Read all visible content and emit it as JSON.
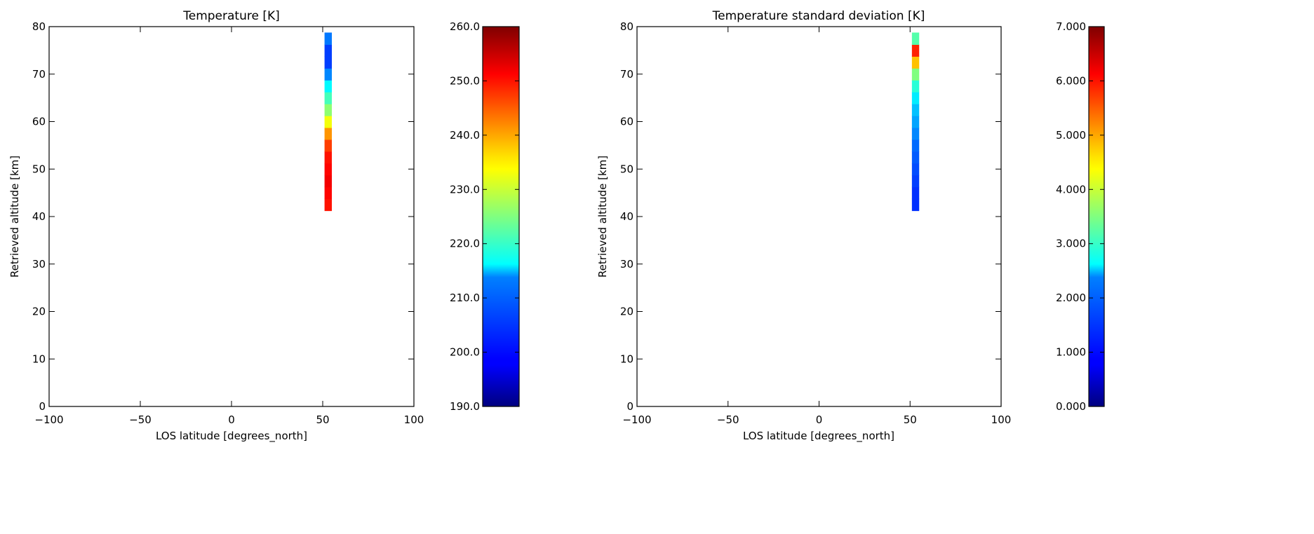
{
  "chart_data": [
    {
      "type": "heatmap",
      "title": "Temperature [K]",
      "xlabel": "LOS latitude [degrees_north]",
      "ylabel": "Retrieved altitude [km]",
      "xlim": [
        -100,
        100
      ],
      "ylim": [
        0,
        80
      ],
      "xticks": [
        -100,
        -50,
        0,
        50,
        100
      ],
      "xtick_labels": [
        "−100",
        "−50",
        "0",
        "50",
        "100"
      ],
      "yticks": [
        0,
        10,
        20,
        30,
        40,
        50,
        60,
        70,
        80
      ],
      "ytick_labels": [
        "0",
        "10",
        "20",
        "30",
        "40",
        "50",
        "60",
        "70",
        "80"
      ],
      "colorbar": {
        "min": 190.0,
        "max": 260.0,
        "tick_values": [
          190,
          200,
          210,
          220,
          230,
          240,
          250,
          260
        ],
        "tick_labels": [
          "190.0",
          "200.0",
          "210.0",
          "220.0",
          "230.0",
          "240.0",
          "250.0",
          "260.0"
        ],
        "colormap": "jet"
      },
      "column": {
        "lat_min": 51,
        "lat_max": 55,
        "altitudes": [
          42.5,
          45,
          47.5,
          50,
          52.5,
          55,
          57.5,
          60,
          62.5,
          65,
          67.5,
          70,
          72.5,
          75,
          77.5
        ],
        "values": [
          250,
          251,
          252,
          251,
          250,
          247,
          241,
          233,
          226,
          221,
          216,
          208,
          203,
          203,
          207
        ]
      }
    },
    {
      "type": "heatmap",
      "title": "Temperature standard deviation [K]",
      "xlabel": "LOS latitude [degrees_north]",
      "ylabel": "Retrieved altitude [km]",
      "xlim": [
        -100,
        100
      ],
      "ylim": [
        0,
        80
      ],
      "xticks": [
        -100,
        -50,
        0,
        50,
        100
      ],
      "xtick_labels": [
        "−100",
        "−50",
        "0",
        "50",
        "100"
      ],
      "yticks": [
        0,
        10,
        20,
        30,
        40,
        50,
        60,
        70,
        80
      ],
      "ytick_labels": [
        "0",
        "10",
        "20",
        "30",
        "40",
        "50",
        "60",
        "70",
        "80"
      ],
      "colorbar": {
        "min": 0.0,
        "max": 7.0,
        "tick_values": [
          0,
          1,
          2,
          3,
          4,
          5,
          6,
          7
        ],
        "tick_labels": [
          "0.000",
          "1.000",
          "2.000",
          "3.000",
          "4.000",
          "5.000",
          "6.000",
          "7.000"
        ],
        "colormap": "jet"
      },
      "column": {
        "lat_min": 51,
        "lat_max": 55,
        "altitudes": [
          42.5,
          45,
          47.5,
          50,
          52.5,
          55,
          57.5,
          60,
          62.5,
          65,
          67.5,
          70,
          72.5,
          75,
          77.5
        ],
        "values": [
          1.2,
          1.2,
          1.3,
          1.4,
          1.5,
          1.6,
          1.8,
          2.0,
          2.2,
          2.5,
          2.9,
          3.5,
          4.8,
          5.9,
          3.2
        ]
      }
    }
  ]
}
